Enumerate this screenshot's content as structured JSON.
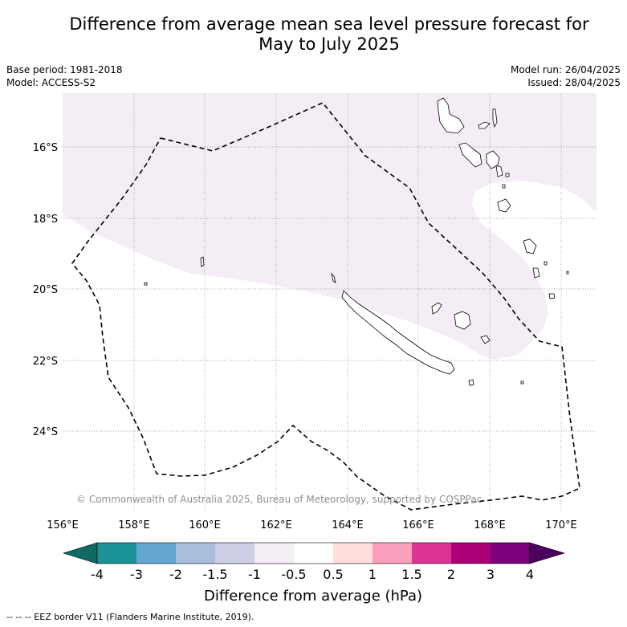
{
  "title": {
    "line1": "Difference from average mean sea level pressure forecast for",
    "line2": "May to July 2025"
  },
  "meta": {
    "base_period": "Base period: 1981-2018",
    "model": "Model: ACCESS-S2",
    "model_run": "Model run: 26/04/2025",
    "issued": "Issued: 28/04/2025"
  },
  "map": {
    "longitude_labels": [
      "156°E",
      "158°E",
      "160°E",
      "162°E",
      "164°E",
      "166°E",
      "168°E",
      "170°E"
    ],
    "latitude_labels": [
      "16°S",
      "18°S",
      "20°S",
      "22°S",
      "24°S"
    ],
    "copyright": "© Commonwealth of Australia 2025, Bureau of Meteorology, supported by COSPPac",
    "anomaly_fill_color": "#f4edf5",
    "anomaly_region_class": "-1 to -0.5 hPa"
  },
  "colorbar": {
    "colors": [
      "#0f6b62",
      "#1a9296",
      "#63a7cf",
      "#a8bedc",
      "#cdcfe6",
      "#f4edf5",
      "#ffffff",
      "#ffdedd",
      "#f8a0bb",
      "#dc3496",
      "#ac0078",
      "#7c007a",
      "#4b0060"
    ],
    "tick_labels": [
      "-4",
      "-3",
      "-2",
      "-1.5",
      "-1",
      "-0.5",
      "0.5",
      "1",
      "1.5",
      "2",
      "3",
      "4"
    ],
    "label": "Difference from average (hPa)"
  },
  "footer": {
    "legend_text": "-- -- -- EEZ border V11 (Flanders Marine Institute, 2019)."
  }
}
